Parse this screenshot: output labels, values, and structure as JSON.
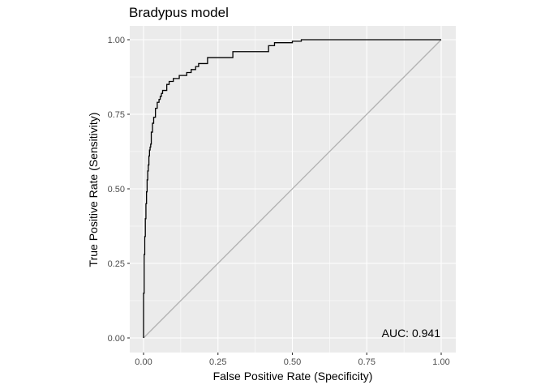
{
  "chart_data": {
    "type": "line",
    "title": "Bradypus model",
    "xlabel": "False Positive Rate (Specificity)",
    "ylabel": "True Positive Rate (Sensitivity)",
    "xlim": [
      0,
      1
    ],
    "ylim": [
      0,
      1
    ],
    "x_ticks": [
      "0.00",
      "0.25",
      "0.50",
      "0.75",
      "1.00"
    ],
    "y_ticks": [
      "0.00",
      "0.25",
      "0.50",
      "0.75",
      "1.00"
    ],
    "grid": true,
    "annotation": "AUC: 0.941",
    "colors": {
      "panel": "#ebebeb",
      "grid_major": "#ffffff",
      "curve": "#000000",
      "diagonal": "#b3b3b3"
    },
    "series": [
      {
        "x": [
          0.0,
          0.0,
          0.002,
          0.002,
          0.004,
          0.004,
          0.006,
          0.006,
          0.008,
          0.008,
          0.01,
          0.01,
          0.012,
          0.012,
          0.014,
          0.014,
          0.016,
          0.016,
          0.018,
          0.018,
          0.02,
          0.02,
          0.022,
          0.022,
          0.024,
          0.024,
          0.026,
          0.026,
          0.03,
          0.03,
          0.034,
          0.034,
          0.04,
          0.04,
          0.046,
          0.046,
          0.052,
          0.052,
          0.056,
          0.056,
          0.06,
          0.06,
          0.064,
          0.064,
          0.068,
          0.068,
          0.072,
          0.072,
          0.078,
          0.078,
          0.086,
          0.086,
          0.1,
          0.1,
          0.112,
          0.112,
          0.12,
          0.12,
          0.13,
          0.13,
          0.145,
          0.145,
          0.16,
          0.16,
          0.175,
          0.175,
          0.185,
          0.185,
          0.2,
          0.2,
          0.215,
          0.215,
          0.24,
          0.24,
          0.3,
          0.3,
          0.42,
          0.42,
          0.44,
          0.44,
          0.5,
          0.5,
          0.53,
          0.53,
          1.0
        ],
        "y": [
          0.0,
          0.15,
          0.15,
          0.28,
          0.28,
          0.34,
          0.34,
          0.4,
          0.4,
          0.45,
          0.45,
          0.49,
          0.49,
          0.53,
          0.53,
          0.56,
          0.56,
          0.58,
          0.58,
          0.61,
          0.61,
          0.63,
          0.63,
          0.64,
          0.64,
          0.65,
          0.65,
          0.69,
          0.69,
          0.72,
          0.72,
          0.74,
          0.74,
          0.77,
          0.77,
          0.79,
          0.79,
          0.8,
          0.8,
          0.81,
          0.81,
          0.82,
          0.82,
          0.83,
          0.83,
          0.83,
          0.83,
          0.83,
          0.83,
          0.85,
          0.85,
          0.86,
          0.86,
          0.87,
          0.87,
          0.87,
          0.87,
          0.88,
          0.88,
          0.88,
          0.88,
          0.89,
          0.89,
          0.9,
          0.9,
          0.91,
          0.91,
          0.92,
          0.92,
          0.92,
          0.92,
          0.94,
          0.94,
          0.94,
          0.94,
          0.96,
          0.96,
          0.98,
          0.98,
          0.99,
          0.99,
          0.995,
          0.995,
          1.0,
          1.0
        ]
      },
      {
        "x": [
          0,
          1
        ],
        "y": [
          0,
          1
        ]
      }
    ]
  }
}
